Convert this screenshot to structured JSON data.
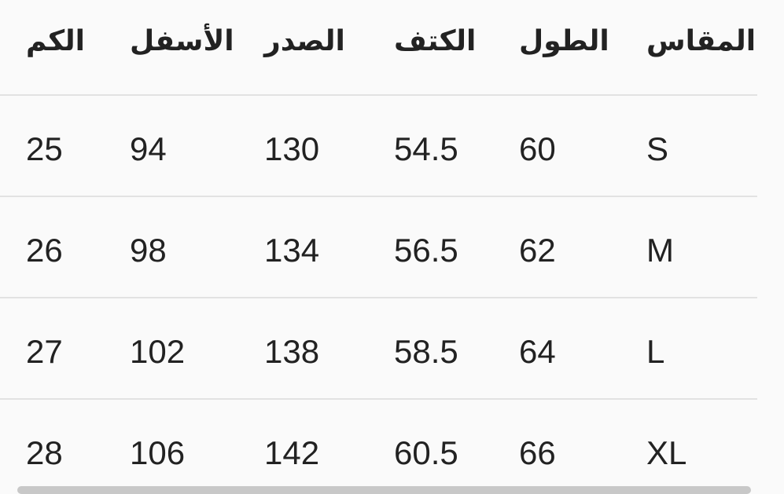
{
  "table": {
    "headers": [
      "المقاس",
      "الطول",
      "الكتف",
      "الصدر",
      "الأسفل",
      "الكم"
    ],
    "rows": [
      [
        "S",
        "60",
        "54.5",
        "130",
        "94",
        "25"
      ],
      [
        "M",
        "62",
        "56.5",
        "134",
        "98",
        "26"
      ],
      [
        "L",
        "64",
        "58.5",
        "138",
        "102",
        "27"
      ],
      [
        "XL",
        "66",
        "60.5",
        "142",
        "106",
        "28"
      ]
    ]
  }
}
